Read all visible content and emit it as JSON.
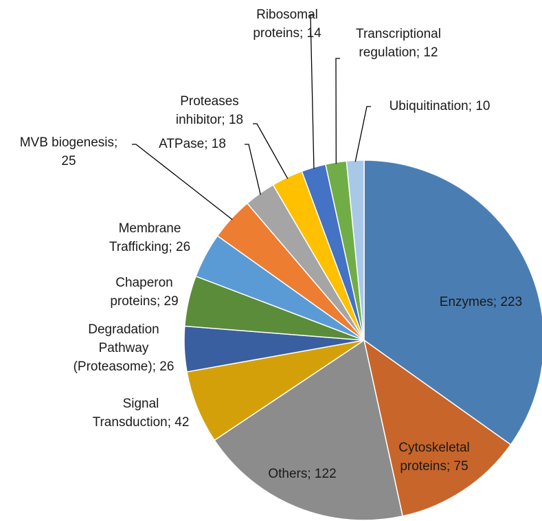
{
  "chart_data": {
    "type": "pie",
    "values": [
      223,
      75,
      122,
      42,
      26,
      29,
      26,
      25,
      18,
      18,
      14,
      12,
      10
    ],
    "value_labels": [
      "Enzymes; 223",
      "Cytoskeletal\nproteins; 75",
      "Others; 122",
      "Signal\nTransduction; 42",
      "Degradation\nPathway\n(Proteasome); 26",
      "Chaperon\nproteins; 29",
      "Membrane\nTrafficking; 26",
      "MVB biogenesis;\n25",
      "ATPase; 18",
      "Proteases\ninhibitor; 18",
      "Ribosomal\nproteins; 14",
      "Transcriptional\nregulation; 12",
      "Ubiquitination; 10"
    ],
    "colors": [
      "#4a7eb3",
      "#c8652b",
      "#8c8c8c",
      "#d4a00a",
      "#3a5fa0",
      "#5a8c3a",
      "#5b9bd5",
      "#ed7d31",
      "#a5a5a5",
      "#ffc000",
      "#4472c4",
      "#70ad47",
      "#a9c8e8"
    ],
    "start_angle": 0,
    "direction": "clockwise"
  }
}
